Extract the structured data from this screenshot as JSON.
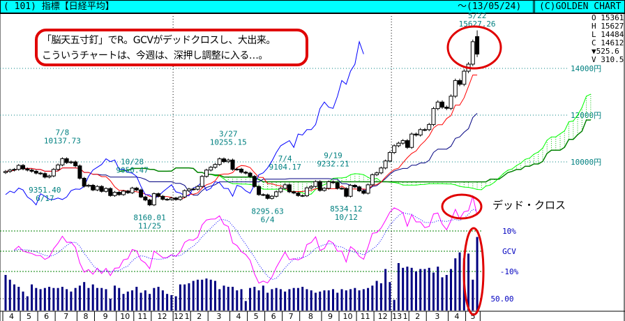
{
  "header": {
    "title": "( 101) 指標【日経平均】",
    "date": "～(13/05/24)",
    "copyright": "(C)GOLDEN CHART"
  },
  "info": {
    "open": "O 15361",
    "high": "H 15627",
    "low": "L 14484",
    "close": "C 14612",
    "change": "▼525.6",
    "volume": "V 310.5"
  },
  "callout": {
    "line1": "「脳天五寸釘」でR。GCVがデッドクロスし、大出来。",
    "line2": "こういうチャートは、今週は、深押し調整に入る…。"
  },
  "dead_cross_label": "デッド・クロス",
  "colors": {
    "header_bg": "#00ffff",
    "tenkan": "#ff0000",
    "kijun": "#000080",
    "chikou": "#0000ff",
    "span_a": "#00ff00",
    "span_b": "#008000",
    "gcv": "#ff00ff",
    "gcv_signal": "#0000ff",
    "volume": "#000080",
    "highlight": "#e00000"
  },
  "chart_data": {
    "type": "candlestick",
    "price_axis": {
      "ticks": [
        {
          "value": 14000,
          "label": "14000円"
        },
        {
          "value": 12000,
          "label": "12000円"
        },
        {
          "value": 10000,
          "label": "10000円"
        }
      ]
    },
    "osc_axis": {
      "ticks": [
        {
          "value": 10,
          "label": "10%"
        },
        {
          "value": 0,
          "label": "GCV"
        },
        {
          "value": -10,
          "label": "-10%"
        }
      ]
    },
    "volume_axis": {
      "ticks": [
        {
          "value": 50,
          "label": "50.00"
        }
      ]
    },
    "months": [
      {
        "label": "4",
        "week": 0
      },
      {
        "label": "5",
        "week": 4
      },
      {
        "label": "6",
        "week": 8
      },
      {
        "label": "7",
        "week": 12
      },
      {
        "label": "8",
        "week": 17
      },
      {
        "label": "9",
        "week": 21
      },
      {
        "label": "10",
        "week": 26
      },
      {
        "label": "11",
        "week": 30
      },
      {
        "label": "12",
        "week": 34
      },
      {
        "label": "12",
        "week": 39,
        "year": true
      },
      {
        "label": "1",
        "week": 39
      },
      {
        "label": "2",
        "week": 43
      },
      {
        "label": "3",
        "week": 47
      },
      {
        "label": "4",
        "week": 52
      },
      {
        "label": "5",
        "week": 56
      },
      {
        "label": "6",
        "week": 60
      },
      {
        "label": "7",
        "week": 64
      },
      {
        "label": "8",
        "week": 68
      },
      {
        "label": "9",
        "week": 73
      },
      {
        "label": "10",
        "week": 77
      },
      {
        "label": "11",
        "week": 81
      },
      {
        "label": "12",
        "week": 85
      },
      {
        "label": "13",
        "week": 89,
        "year": true
      },
      {
        "label": "1",
        "week": 89
      },
      {
        "label": "2",
        "week": 93
      },
      {
        "label": "3",
        "week": 97
      },
      {
        "label": "4",
        "week": 102
      },
      {
        "label": "5",
        "week": 106
      }
    ],
    "closes": [
      9590,
      9650,
      9680,
      9850,
      9700,
      9650,
      9600,
      9520,
      9500,
      9350,
      9400,
      9680,
      9870,
      10137,
      9970,
      10000,
      9830,
      9300,
      8960,
      9000,
      8800,
      8950,
      8740,
      8860,
      8560,
      8700,
      8600,
      8750,
      8680,
      8880,
      8800,
      8500,
      8370,
      8160,
      8640,
      8530,
      8400,
      8390,
      8455,
      8390,
      8500,
      8770,
      8840,
      8830,
      8950,
      9380,
      9650,
      9770,
      9890,
      10130,
      10010,
      10080,
      9680,
      9690,
      9560,
      9520,
      9380,
      8950,
      8600,
      8590,
      8440,
      8530,
      8720,
      8870,
      9020,
      8720,
      8670,
      8560,
      8550,
      8890,
      8950,
      9160,
      8780,
      8870,
      9150,
      9110,
      8870,
      8860,
      8530,
      9000,
      8930,
      8760,
      8660,
      9020,
      9450,
      9530,
      9740,
      10040,
      10400,
      10690,
      10800,
      10910,
      10620,
      11190,
      11150,
      11380,
      11380,
      11600,
      12280,
      12560,
      12340,
      12290,
      12810,
      13480,
      13320,
      13880,
      14180,
      15140,
      14612
    ],
    "last_candle": {
      "open": 15361,
      "high": 15627,
      "low": 14484,
      "close": 14612
    },
    "volumes": [
      150,
      130,
      110,
      100,
      80,
      60,
      110,
      95,
      90,
      95,
      100,
      95,
      95,
      100,
      90,
      80,
      95,
      105,
      120,
      95,
      110,
      95,
      95,
      90,
      50,
      105,
      95,
      70,
      80,
      85,
      100,
      75,
      85,
      70,
      95,
      100,
      85,
      70,
      65,
      60,
      110,
      110,
      115,
      125,
      130,
      130,
      135,
      130,
      125,
      90,
      105,
      100,
      100,
      85,
      90,
      40,
      95,
      100,
      85,
      105,
      75,
      90,
      95,
      90,
      80,
      90,
      95,
      95,
      100,
      90,
      85,
      75,
      80,
      85,
      85,
      90,
      75,
      90,
      85,
      90,
      95,
      85,
      90,
      95,
      105,
      125,
      115,
      175,
      120,
      45,
      200,
      180,
      185,
      180,
      165,
      175,
      175,
      180,
      160,
      185,
      140,
      150,
      175,
      220,
      245,
      220,
      240,
      130,
      310
    ],
    "annotations": [
      {
        "date": "7/8",
        "price": "10137.73",
        "week": 13,
        "pos": "above"
      },
      {
        "date": "6/17",
        "price": "9351.40",
        "week": 9,
        "pos": "below"
      },
      {
        "date": "10/28",
        "price": "9050.47",
        "week": 29,
        "pos": "above"
      },
      {
        "date": "11/25",
        "price": "8160.01",
        "week": 33,
        "pos": "below"
      },
      {
        "date": "3/27",
        "price": "10255.15",
        "week": 51,
        "pos": "above"
      },
      {
        "date": "6/4",
        "price": "8295.63",
        "week": 60,
        "pos": "below"
      },
      {
        "date": "7/4",
        "price": "9104.17",
        "week": 64,
        "pos": "above"
      },
      {
        "date": "9/19",
        "price": "9232.21",
        "week": 75,
        "pos": "above"
      },
      {
        "date": "10/12",
        "price": "8534.12",
        "week": 78,
        "pos": "below"
      },
      {
        "date": "5/22",
        "price": "15627.26",
        "week": 108,
        "pos": "above"
      }
    ]
  }
}
